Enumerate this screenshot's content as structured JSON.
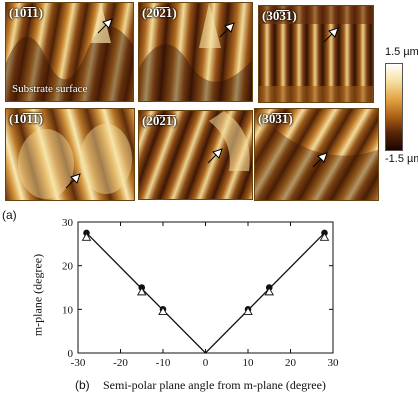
{
  "panels": [
    {
      "id": "p1",
      "label": "(10̅1̅1)",
      "caption": "Substrate surface"
    },
    {
      "id": "p2",
      "label": "(20̅2̅1)"
    },
    {
      "id": "p3",
      "label": "(30̅3̅1)"
    },
    {
      "id": "p4",
      "label": "(10̅1̅1̅)"
    },
    {
      "id": "p5",
      "label": "(20̅2̅1̅)"
    },
    {
      "id": "p6",
      "label": "(30̅3̅1̅)"
    }
  ],
  "color_scale": {
    "top": "1.5 µm",
    "bottom": "-1.5 µm"
  },
  "labels": {
    "part_a": "(a)",
    "part_b": "(b)"
  },
  "chart_data": {
    "type": "scatter",
    "xlabel": "Semi-polar plane angle from m-plane (degree)",
    "ylabel": "m-plane (degree)",
    "xlim": [
      -30,
      30
    ],
    "ylim": [
      0,
      30
    ],
    "xticks": [
      "-30",
      "-20",
      "-10",
      "0",
      "10",
      "20",
      "30"
    ],
    "yticks": [
      "0",
      "10",
      "20",
      "30"
    ],
    "series": [
      {
        "marker": "circle",
        "x": [
          -28,
          -15,
          -10,
          10,
          15,
          28
        ],
        "y": [
          27.5,
          15,
          10,
          10,
          15,
          27.5
        ]
      },
      {
        "marker": "triangle",
        "x": [
          -28,
          -15,
          -10,
          10,
          15,
          28
        ],
        "y": [
          26.5,
          14,
          9.5,
          9.5,
          14,
          26.5
        ]
      }
    ],
    "line": {
      "x": [
        -28,
        0,
        28
      ],
      "y": [
        27.5,
        0,
        27.5
      ]
    }
  }
}
